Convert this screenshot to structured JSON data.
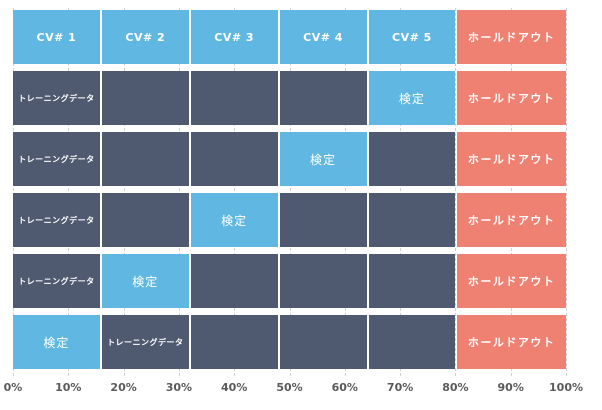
{
  "colors": {
    "cv_blue": "#60B8E2",
    "dark_slate": "#4F5A70",
    "holdout_salmon": "#EF8173",
    "axis_text": "#5A5A5A",
    "gridline": "#D0D0D0",
    "cell_text": "#FFFFFF"
  },
  "chart_data": {
    "type": "bar",
    "subtype": "cross-validation-partition",
    "orientation": "horizontal",
    "x_axis": {
      "ticks": [
        "0%",
        "10%",
        "20%",
        "30%",
        "40%",
        "50%",
        "60%",
        "70%",
        "80%",
        "90%",
        "100%"
      ],
      "range_pct": [
        0,
        100
      ],
      "gridlines": "dashed"
    },
    "column_layout_pct": [
      16,
      16,
      16,
      16,
      16,
      20
    ],
    "legend_labels": {
      "training": "トレーニングデータ",
      "validation": "検定",
      "holdout": "ホールドアウト"
    },
    "rows": [
      {
        "name": "cv-header",
        "cells": [
          {
            "type": "cv",
            "label": "CV# 1"
          },
          {
            "type": "cv",
            "label": "CV# 2"
          },
          {
            "type": "cv",
            "label": "CV# 3"
          },
          {
            "type": "cv",
            "label": "CV# 4"
          },
          {
            "type": "cv",
            "label": "CV# 5"
          },
          {
            "type": "holdout",
            "label": "ホールドアウト"
          }
        ]
      },
      {
        "name": "fold-1",
        "cells": [
          {
            "type": "train",
            "label": "トレーニングデータ"
          },
          {
            "type": "empty"
          },
          {
            "type": "empty"
          },
          {
            "type": "empty"
          },
          {
            "type": "val",
            "label": "検定"
          },
          {
            "type": "holdout",
            "label": "ホールドアウト"
          }
        ]
      },
      {
        "name": "fold-2",
        "cells": [
          {
            "type": "train",
            "label": "トレーニングデータ"
          },
          {
            "type": "empty"
          },
          {
            "type": "empty"
          },
          {
            "type": "val",
            "label": "検定"
          },
          {
            "type": "empty"
          },
          {
            "type": "holdout",
            "label": "ホールドアウト"
          }
        ]
      },
      {
        "name": "fold-3",
        "cells": [
          {
            "type": "train",
            "label": "トレーニングデータ"
          },
          {
            "type": "empty"
          },
          {
            "type": "val",
            "label": "検定"
          },
          {
            "type": "empty"
          },
          {
            "type": "empty"
          },
          {
            "type": "holdout",
            "label": "ホールドアウト"
          }
        ]
      },
      {
        "name": "fold-4",
        "cells": [
          {
            "type": "train",
            "label": "トレーニングデータ"
          },
          {
            "type": "val",
            "label": "検定"
          },
          {
            "type": "empty"
          },
          {
            "type": "empty"
          },
          {
            "type": "empty"
          },
          {
            "type": "holdout",
            "label": "ホールドアウト"
          }
        ]
      },
      {
        "name": "fold-5",
        "cells": [
          {
            "type": "val",
            "label": "検定"
          },
          {
            "type": "train",
            "label": "トレーニングデータ"
          },
          {
            "type": "empty"
          },
          {
            "type": "empty"
          },
          {
            "type": "empty"
          },
          {
            "type": "holdout",
            "label": "ホールドアウト"
          }
        ]
      }
    ]
  }
}
